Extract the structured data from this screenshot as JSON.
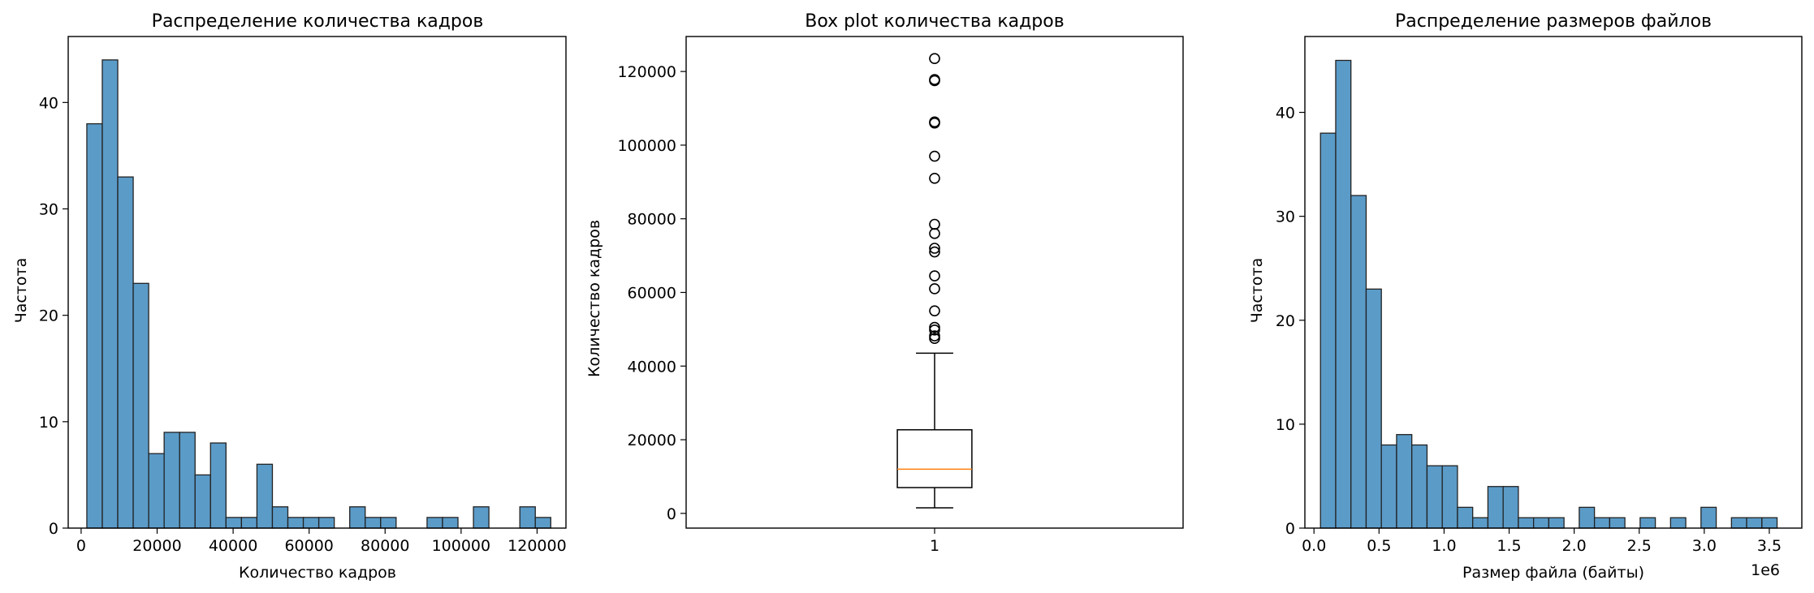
{
  "chart_data": [
    {
      "type": "bar",
      "subtype": "histogram",
      "title": "Распределение количества кадров",
      "xlabel": "Количество кадров",
      "ylabel": "Частота",
      "xlim": [
        -3400,
        127600
      ],
      "ylim": [
        0,
        46.2
      ],
      "xticks": [
        0,
        20000,
        40000,
        60000,
        80000,
        100000,
        120000
      ],
      "yticks": [
        0,
        10,
        20,
        30,
        40
      ],
      "bin_edges": [
        1500,
        5570,
        9640,
        13710,
        17780,
        21850,
        25920,
        29990,
        34060,
        38130,
        42200,
        46270,
        50340,
        54410,
        58480,
        62550,
        66620,
        70690,
        74760,
        78830,
        82900,
        86970,
        91040,
        95110,
        99180,
        103250,
        107320,
        111390,
        115460,
        119530,
        123600
      ],
      "counts": [
        38,
        44,
        33,
        23,
        7,
        9,
        9,
        5,
        8,
        1,
        1,
        6,
        2,
        1,
        1,
        1,
        0,
        2,
        1,
        1,
        0,
        0,
        1,
        1,
        0,
        2,
        0,
        0,
        2,
        1
      ],
      "bar_color": "#5b9bc8",
      "edge_color": "#222222",
      "grid": false
    },
    {
      "type": "box",
      "title": "Box plot количества кадров",
      "xlabel": "",
      "ylabel": "Количество кадров",
      "xlim": [
        0.5,
        1.5
      ],
      "ylim": [
        -4000,
        129500
      ],
      "xticks": [
        1
      ],
      "yticks": [
        0,
        20000,
        40000,
        60000,
        80000,
        100000,
        120000
      ],
      "box": {
        "position": 1,
        "whisker_low": 1500,
        "q1": 7000,
        "median": 12000,
        "q3": 22700,
        "whisker_high": 43500
      },
      "outliers": [
        47500,
        48200,
        49800,
        50500,
        55000,
        61000,
        64500,
        71000,
        72000,
        76000,
        78500,
        91000,
        97000,
        106000,
        106300,
        117500,
        117800,
        123500
      ],
      "median_color": "#ff7f0e",
      "grid": false
    },
    {
      "type": "bar",
      "subtype": "histogram",
      "title": "Распределение размеров файлов",
      "xlabel": "Размер файла (байты)",
      "ylabel": "Частота",
      "x_scale_note": "1e6",
      "xlim": [
        -0.07,
        3.75
      ],
      "ylim": [
        0,
        47.3
      ],
      "xticks": [
        0.0,
        0.5,
        1.0,
        1.5,
        2.0,
        2.5,
        3.0,
        3.5
      ],
      "xtick_labels": [
        "0.0",
        "0.5",
        "1.0",
        "1.5",
        "2.0",
        "2.5",
        "3.0",
        "3.5"
      ],
      "yticks": [
        0,
        10,
        20,
        30,
        40
      ],
      "bin_edges": [
        0.05,
        0.167,
        0.284,
        0.401,
        0.518,
        0.635,
        0.752,
        0.869,
        0.986,
        1.103,
        1.22,
        1.337,
        1.454,
        1.571,
        1.688,
        1.805,
        1.922,
        2.039,
        2.156,
        2.273,
        2.39,
        2.507,
        2.624,
        2.741,
        2.858,
        2.975,
        3.092,
        3.209,
        3.326,
        3.443,
        3.56
      ],
      "counts": [
        38,
        45,
        32,
        23,
        8,
        9,
        8,
        6,
        6,
        2,
        1,
        4,
        4,
        1,
        1,
        1,
        0,
        2,
        1,
        1,
        0,
        1,
        0,
        1,
        0,
        2,
        0,
        1,
        1,
        1
      ],
      "bar_color": "#5b9bc8",
      "edge_color": "#222222",
      "grid": false
    }
  ]
}
